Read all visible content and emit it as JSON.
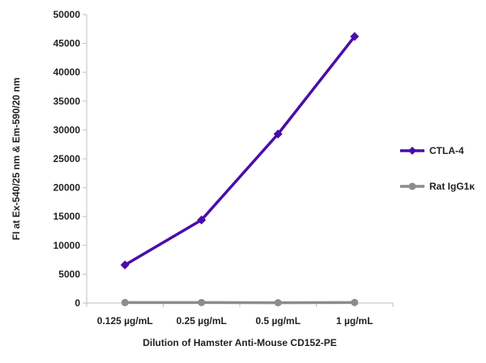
{
  "chart_data": {
    "type": "line",
    "xlabel": "Dilution of Hamster Anti-Mouse CD152-PE",
    "ylabel": "FI at Ex-540/25 nm & Em-590/20 nm",
    "categories": [
      "0.125 µg/mL",
      "0.25 µg/mL",
      "0.5 µg/mL",
      "1 µg/mL"
    ],
    "ylim": [
      0,
      50000
    ],
    "yticks": [
      0,
      5000,
      10000,
      15000,
      20000,
      25000,
      30000,
      35000,
      40000,
      45000,
      50000
    ],
    "grid": false,
    "legend_position": "right",
    "series": [
      {
        "name": "CTLA-4",
        "values": [
          6600,
          14400,
          29300,
          46200
        ],
        "color": "#4B0CA8",
        "marker": "diamond"
      },
      {
        "name": "Rat IgG1κ",
        "values": [
          80,
          90,
          60,
          90
        ],
        "color": "#8C8C8C",
        "marker": "circle"
      }
    ]
  }
}
